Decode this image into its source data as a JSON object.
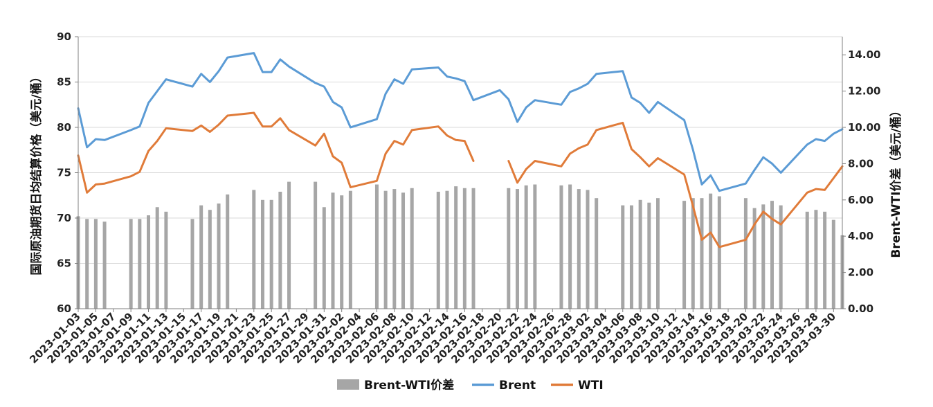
{
  "chart_data": {
    "type": "bar+line",
    "title": "",
    "ylabel_left": "国际原油期货日均结算价格（美元/桶）",
    "ylabel_right": "Brent-WTI价差（美元/桶）",
    "ylim_left": [
      60,
      90
    ],
    "ylim_right": [
      0,
      15
    ],
    "yticks_left": [
      "60",
      "65",
      "70",
      "75",
      "80",
      "85",
      "90"
    ],
    "yticks_right": [
      "0.00",
      "2.00",
      "4.00",
      "6.00",
      "8.00",
      "10.00",
      "12.00",
      "14.00"
    ],
    "x_tick_labels": [
      "2023-01-03",
      "2023-01-05",
      "2023-01-07",
      "2023-01-09",
      "2023-01-11",
      "2023-01-13",
      "2023-01-15",
      "2023-01-17",
      "2023-01-19",
      "2023-01-21",
      "2023-01-23",
      "2023-01-25",
      "2023-01-27",
      "2023-01-29",
      "2023-01-31",
      "2023-02-02",
      "2023-02-04",
      "2023-02-06",
      "2023-02-08",
      "2023-02-10",
      "2023-02-12",
      "2023-02-14",
      "2023-02-16",
      "2023-02-18",
      "2023-02-20",
      "2023-02-22",
      "2023-02-24",
      "2023-02-26",
      "2023-02-28",
      "2023-03-02",
      "2023-03-04",
      "2023-03-06",
      "2023-03-08",
      "2023-03-10",
      "2023-03-12",
      "2023-03-14",
      "2023-03-16",
      "2023-03-18",
      "2023-03-20",
      "2023-03-22",
      "2023-03-24",
      "2023-03-26",
      "2023-03-28",
      "2023-03-30"
    ],
    "legend": [
      "Brent-WTI价差",
      "Brent",
      "WTI"
    ],
    "colors": {
      "spread": "#a6a6a6",
      "brent": "#5b9bd5",
      "wti": "#e07b39"
    },
    "series": [
      {
        "name": "Brent-WTI价差",
        "type": "bar",
        "axis": "right",
        "x": [
          "2023-01-03",
          "2023-01-04",
          "2023-01-05",
          "2023-01-06",
          "2023-01-09",
          "2023-01-10",
          "2023-01-11",
          "2023-01-12",
          "2023-01-13",
          "2023-01-16",
          "2023-01-17",
          "2023-01-18",
          "2023-01-19",
          "2023-01-20",
          "2023-01-23",
          "2023-01-24",
          "2023-01-25",
          "2023-01-26",
          "2023-01-27",
          "2023-01-30",
          "2023-01-31",
          "2023-02-01",
          "2023-02-02",
          "2023-02-03",
          "2023-02-06",
          "2023-02-07",
          "2023-02-08",
          "2023-02-09",
          "2023-02-10",
          "2023-02-13",
          "2023-02-14",
          "2023-02-15",
          "2023-02-16",
          "2023-02-17",
          "2023-02-21",
          "2023-02-22",
          "2023-02-23",
          "2023-02-24",
          "2023-02-27",
          "2023-02-28",
          "2023-03-01",
          "2023-03-02",
          "2023-03-03",
          "2023-03-06",
          "2023-03-07",
          "2023-03-08",
          "2023-03-09",
          "2023-03-10",
          "2023-03-13",
          "2023-03-14",
          "2023-03-15",
          "2023-03-16",
          "2023-03-17",
          "2023-03-20",
          "2023-03-21",
          "2023-03-22",
          "2023-03-23",
          "2023-03-24",
          "2023-03-27",
          "2023-03-28",
          "2023-03-29",
          "2023-03-30",
          "2023-03-31"
        ],
        "values": [
          5.1,
          4.95,
          4.95,
          4.8,
          4.95,
          4.95,
          5.15,
          5.6,
          5.35,
          4.95,
          5.7,
          5.45,
          5.8,
          6.3,
          6.55,
          6.0,
          6.0,
          6.45,
          7.0,
          7.0,
          5.6,
          6.4,
          6.25,
          6.5,
          6.85,
          6.5,
          6.6,
          6.4,
          6.65,
          6.45,
          6.5,
          6.75,
          6.65,
          6.65,
          6.65,
          6.6,
          6.8,
          6.85,
          6.8,
          6.85,
          6.6,
          6.55,
          6.1,
          5.7,
          5.7,
          6.0,
          5.85,
          6.1,
          5.95,
          6.1,
          6.1,
          6.35,
          6.2,
          6.1,
          5.55,
          5.75,
          5.95,
          5.7,
          5.35,
          5.45,
          5.35,
          4.9,
          4.05
        ]
      },
      {
        "name": "Brent",
        "type": "line",
        "axis": "left",
        "x": [
          "2023-01-03",
          "2023-01-04",
          "2023-01-05",
          "2023-01-06",
          "2023-01-09",
          "2023-01-10",
          "2023-01-11",
          "2023-01-12",
          "2023-01-13",
          "2023-01-16",
          "2023-01-17",
          "2023-01-18",
          "2023-01-19",
          "2023-01-20",
          "2023-01-23",
          "2023-01-24",
          "2023-01-25",
          "2023-01-26",
          "2023-01-27",
          "2023-01-30",
          "2023-01-31",
          "2023-02-01",
          "2023-02-02",
          "2023-02-03",
          "2023-02-06",
          "2023-02-07",
          "2023-02-08",
          "2023-02-09",
          "2023-02-10",
          "2023-02-13",
          "2023-02-14",
          "2023-02-15",
          "2023-02-16",
          "2023-02-17",
          "2023-02-20",
          "2023-02-21",
          "2023-02-22",
          "2023-02-23",
          "2023-02-24",
          "2023-02-27",
          "2023-02-28",
          "2023-03-01",
          "2023-03-02",
          "2023-03-03",
          "2023-03-06",
          "2023-03-07",
          "2023-03-08",
          "2023-03-09",
          "2023-03-10",
          "2023-03-13",
          "2023-03-14",
          "2023-03-15",
          "2023-03-16",
          "2023-03-17",
          "2023-03-20",
          "2023-03-21",
          "2023-03-22",
          "2023-03-23",
          "2023-03-24",
          "2023-03-27",
          "2023-03-28",
          "2023-03-29",
          "2023-03-30",
          "2023-03-31"
        ],
        "values": [
          82.1,
          77.8,
          78.7,
          78.6,
          79.7,
          80.1,
          82.7,
          84.0,
          85.3,
          84.5,
          85.9,
          85.0,
          86.2,
          87.7,
          88.2,
          86.1,
          86.1,
          87.5,
          86.7,
          84.9,
          84.5,
          82.8,
          82.2,
          80.0,
          80.9,
          83.7,
          85.3,
          84.8,
          86.4,
          86.6,
          85.6,
          85.4,
          85.1,
          83.0,
          84.1,
          83.1,
          80.6,
          82.2,
          83.0,
          82.5,
          83.9,
          84.3,
          84.8,
          85.9,
          86.2,
          83.3,
          82.7,
          81.6,
          82.8,
          80.8,
          77.5,
          73.7,
          74.7,
          73.0,
          73.8,
          75.3,
          76.7,
          76.0,
          75.0,
          78.1,
          78.7,
          78.5,
          79.3,
          79.8
        ]
      },
      {
        "name": "WTI",
        "type": "line",
        "axis": "left",
        "x": [
          "2023-01-03",
          "2023-01-04",
          "2023-01-05",
          "2023-01-06",
          "2023-01-09",
          "2023-01-10",
          "2023-01-11",
          "2023-01-12",
          "2023-01-13",
          "2023-01-16",
          "2023-01-17",
          "2023-01-18",
          "2023-01-19",
          "2023-01-20",
          "2023-01-23",
          "2023-01-24",
          "2023-01-25",
          "2023-01-26",
          "2023-01-27",
          "2023-01-30",
          "2023-01-31",
          "2023-02-01",
          "2023-02-02",
          "2023-02-03",
          "2023-02-06",
          "2023-02-07",
          "2023-02-08",
          "2023-02-09",
          "2023-02-10",
          "2023-02-13",
          "2023-02-14",
          "2023-02-15",
          "2023-02-16",
          "2023-02-17",
          null,
          "2023-02-21",
          "2023-02-22",
          "2023-02-23",
          "2023-02-24",
          "2023-02-27",
          "2023-02-28",
          "2023-03-01",
          "2023-03-02",
          "2023-03-03",
          "2023-03-06",
          "2023-03-07",
          "2023-03-08",
          "2023-03-09",
          "2023-03-10",
          "2023-03-13",
          "2023-03-14",
          "2023-03-15",
          "2023-03-16",
          "2023-03-17",
          "2023-03-20",
          "2023-03-21",
          "2023-03-22",
          "2023-03-23",
          "2023-03-24",
          "2023-03-27",
          "2023-03-28",
          "2023-03-29",
          "2023-03-30",
          "2023-03-31"
        ],
        "values": [
          76.9,
          72.8,
          73.7,
          73.8,
          74.6,
          75.1,
          77.4,
          78.5,
          79.9,
          79.6,
          80.2,
          79.5,
          80.3,
          81.3,
          81.6,
          80.1,
          80.1,
          81.0,
          79.7,
          78.0,
          79.3,
          76.8,
          76.1,
          73.4,
          74.1,
          77.1,
          78.5,
          78.1,
          79.7,
          80.1,
          79.1,
          78.6,
          78.5,
          76.3,
          null,
          76.3,
          73.9,
          75.4,
          76.3,
          75.7,
          77.1,
          77.7,
          78.1,
          79.7,
          80.5,
          77.6,
          76.7,
          75.7,
          76.6,
          74.8,
          71.3,
          67.6,
          68.4,
          66.8,
          67.6,
          69.3,
          70.7,
          69.9,
          69.3,
          72.8,
          73.2,
          73.1,
          74.4,
          75.7
        ]
      }
    ]
  }
}
